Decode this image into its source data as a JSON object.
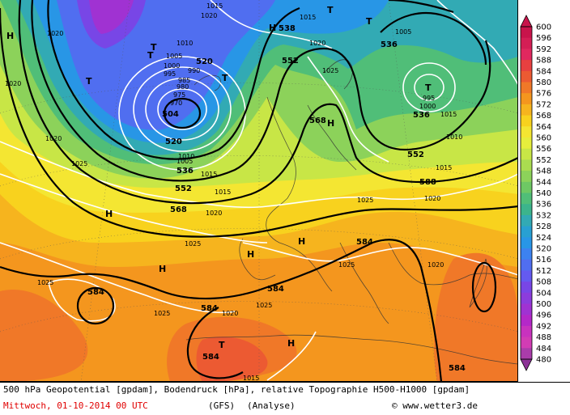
{
  "legend": {
    "values": [
      600,
      596,
      592,
      588,
      584,
      580,
      576,
      572,
      568,
      564,
      560,
      556,
      552,
      548,
      544,
      540,
      536,
      532,
      528,
      524,
      520,
      516,
      512,
      508,
      504,
      500,
      496,
      492,
      488,
      484,
      480
    ],
    "colors": [
      "#c8144b",
      "#d41e55",
      "#e0285f",
      "#e84040",
      "#ec5a32",
      "#f07828",
      "#f4961e",
      "#f6b41e",
      "#f8d21e",
      "#f4e632",
      "#e6ee3c",
      "#c8e646",
      "#aadc50",
      "#8cd25a",
      "#6ec864",
      "#50be78",
      "#3cb48c",
      "#32aab4",
      "#28a0d2",
      "#2896e6",
      "#3c82f0",
      "#506ef0",
      "#645af0",
      "#7846e6",
      "#8c3cdc",
      "#a032d2",
      "#b428c8",
      "#c832be",
      "#d23cb4",
      "#aa3caa",
      "#8c3296"
    ]
  },
  "symbols": {
    "high": "H",
    "low": "T"
  },
  "geo_labels": [
    "584",
    "520",
    "504",
    "520",
    "536",
    "552",
    "568",
    "552",
    "536",
    "536",
    "538",
    "552",
    "568",
    "588",
    "584",
    "584",
    "584",
    "584",
    "584"
  ],
  "pressure_labels": [
    "1020",
    "1010",
    "1005",
    "1000",
    "995",
    "990",
    "985",
    "980",
    "975",
    "970",
    "1015",
    "1020",
    "1025",
    "1020",
    "1015",
    "1025",
    "1020",
    "1015",
    "1010",
    "1025",
    "1020",
    "1025",
    "1015",
    "1005",
    "995",
    "1000",
    "1005",
    "1025",
    "1020",
    "1015",
    "1010",
    "1015",
    "1020",
    "1025",
    "1025",
    "1020",
    "1020",
    "1025",
    "1015"
  ],
  "footer": {
    "line1": "500 hPa Geopotential [gpdam], Bodendruck [hPa], relative Topographie H500-H1000 [gpdam]",
    "line2": "Mittwoch, 01-10-2014  00 UTC",
    "model": "(GFS)",
    "analysis": "(Analyse)",
    "credit": "© www.wetter3.de"
  }
}
